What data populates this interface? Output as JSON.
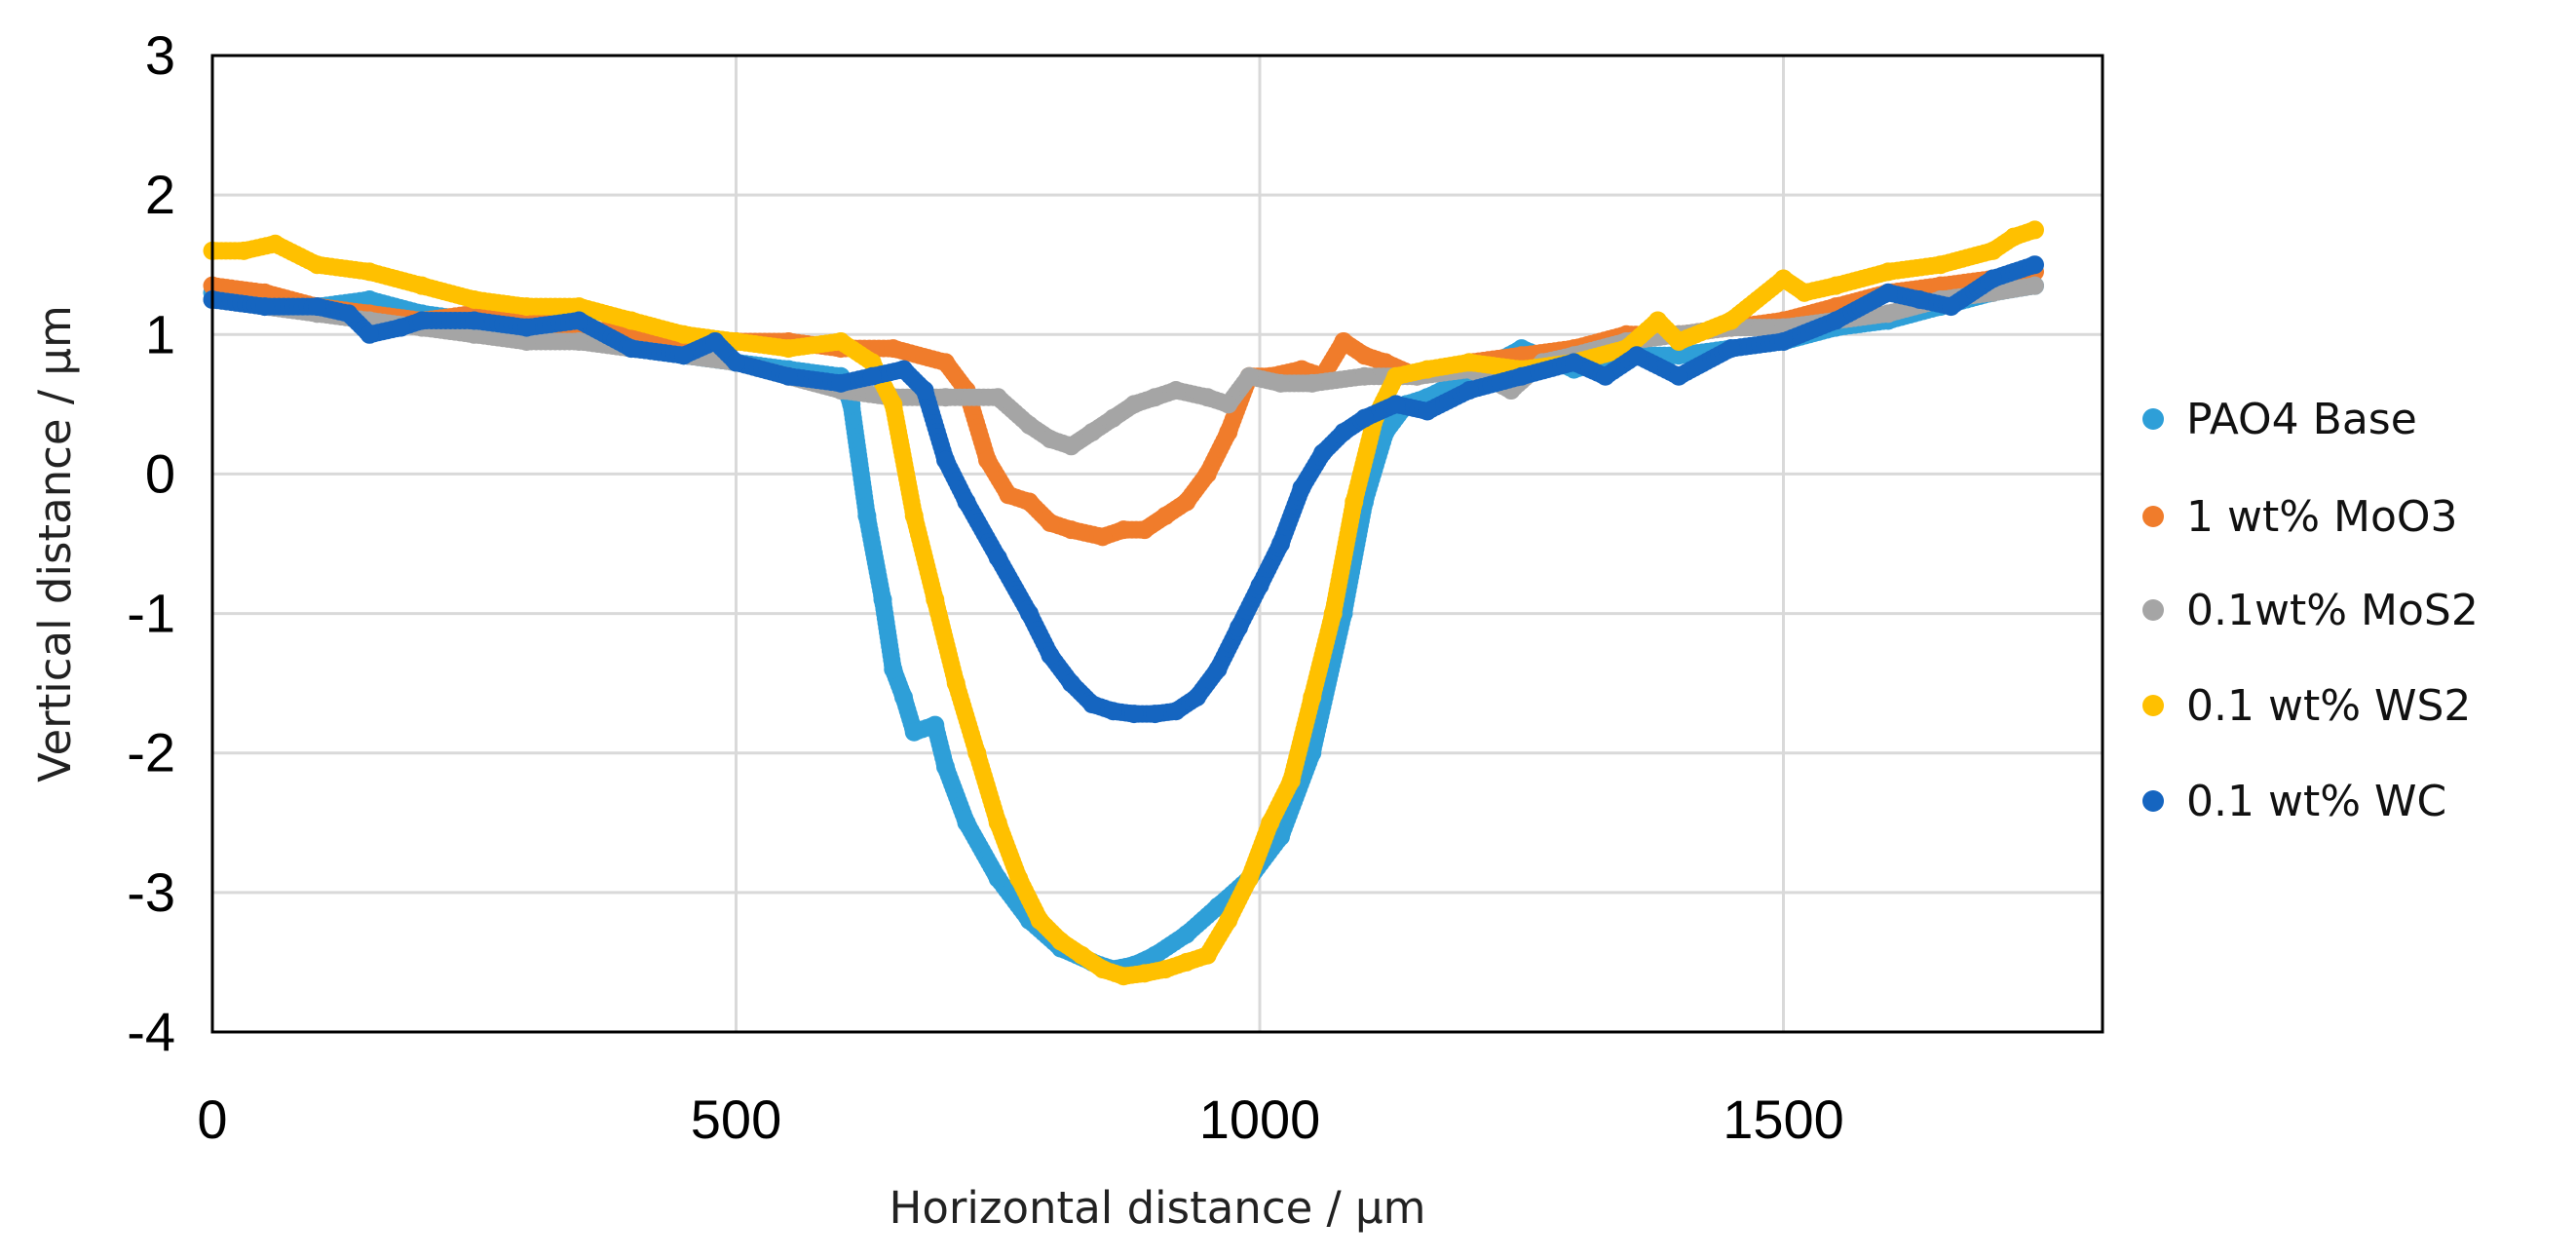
{
  "chart_data": {
    "type": "scatter",
    "title": "",
    "xlabel": "Horizontal distance / µm",
    "ylabel": "Vertical distance / µm",
    "xlim": [
      0,
      1800
    ],
    "ylim": [
      -4,
      3
    ],
    "xticks": [
      0,
      500,
      1000,
      1500
    ],
    "xtick_labels": [
      "0",
      "500",
      "1000",
      "1500"
    ],
    "yticks": [
      3,
      2,
      1,
      0,
      -1,
      -2,
      -3,
      -4
    ],
    "ytick_labels": [
      "3",
      "2",
      "1",
      "0",
      "-1",
      "-2",
      "-3",
      "-4"
    ],
    "grid": true,
    "legend_position": "right",
    "series": [
      {
        "name": "PAO4 Base",
        "color": "#2E9FD8",
        "points": [
          [
            0,
            1.3
          ],
          [
            50,
            1.25
          ],
          [
            100,
            1.2
          ],
          [
            150,
            1.25
          ],
          [
            200,
            1.15
          ],
          [
            250,
            1.1
          ],
          [
            300,
            1.05
          ],
          [
            350,
            1.0
          ],
          [
            400,
            0.9
          ],
          [
            450,
            0.85
          ],
          [
            500,
            0.8
          ],
          [
            550,
            0.75
          ],
          [
            600,
            0.7
          ],
          [
            610,
            0.5
          ],
          [
            625,
            -0.3
          ],
          [
            640,
            -0.9
          ],
          [
            650,
            -1.4
          ],
          [
            660,
            -1.6
          ],
          [
            670,
            -1.85
          ],
          [
            690,
            -1.8
          ],
          [
            700,
            -2.1
          ],
          [
            720,
            -2.5
          ],
          [
            750,
            -2.9
          ],
          [
            780,
            -3.2
          ],
          [
            810,
            -3.4
          ],
          [
            840,
            -3.5
          ],
          [
            860,
            -3.55
          ],
          [
            880,
            -3.52
          ],
          [
            900,
            -3.45
          ],
          [
            930,
            -3.3
          ],
          [
            960,
            -3.1
          ],
          [
            990,
            -2.9
          ],
          [
            1020,
            -2.6
          ],
          [
            1050,
            -2.0
          ],
          [
            1080,
            -1.0
          ],
          [
            1100,
            -0.2
          ],
          [
            1120,
            0.3
          ],
          [
            1140,
            0.5
          ],
          [
            1160,
            0.55
          ],
          [
            1200,
            0.7
          ],
          [
            1250,
            0.9
          ],
          [
            1300,
            0.75
          ],
          [
            1350,
            0.85
          ],
          [
            1400,
            0.85
          ],
          [
            1450,
            0.9
          ],
          [
            1500,
            0.95
          ],
          [
            1550,
            1.05
          ],
          [
            1600,
            1.1
          ],
          [
            1650,
            1.2
          ],
          [
            1700,
            1.3
          ],
          [
            1740,
            1.35
          ]
        ]
      },
      {
        "name": "1 wt% MoO3",
        "color": "#F07C2B",
        "points": [
          [
            0,
            1.35
          ],
          [
            50,
            1.3
          ],
          [
            100,
            1.2
          ],
          [
            150,
            1.15
          ],
          [
            200,
            1.1
          ],
          [
            250,
            1.15
          ],
          [
            300,
            1.1
          ],
          [
            350,
            1.05
          ],
          [
            400,
            1.0
          ],
          [
            450,
            0.95
          ],
          [
            500,
            0.95
          ],
          [
            550,
            0.95
          ],
          [
            600,
            0.9
          ],
          [
            650,
            0.9
          ],
          [
            700,
            0.8
          ],
          [
            720,
            0.6
          ],
          [
            740,
            0.1
          ],
          [
            760,
            -0.15
          ],
          [
            780,
            -0.2
          ],
          [
            800,
            -0.35
          ],
          [
            820,
            -0.4
          ],
          [
            850,
            -0.45
          ],
          [
            870,
            -0.4
          ],
          [
            890,
            -0.4
          ],
          [
            910,
            -0.3
          ],
          [
            930,
            -0.2
          ],
          [
            950,
            0.0
          ],
          [
            970,
            0.3
          ],
          [
            990,
            0.7
          ],
          [
            1010,
            0.7
          ],
          [
            1040,
            0.75
          ],
          [
            1060,
            0.7
          ],
          [
            1080,
            0.95
          ],
          [
            1100,
            0.85
          ],
          [
            1120,
            0.8
          ],
          [
            1150,
            0.7
          ],
          [
            1200,
            0.8
          ],
          [
            1250,
            0.85
          ],
          [
            1300,
            0.9
          ],
          [
            1350,
            1.0
          ],
          [
            1400,
            1.0
          ],
          [
            1450,
            1.05
          ],
          [
            1500,
            1.1
          ],
          [
            1550,
            1.2
          ],
          [
            1600,
            1.3
          ],
          [
            1650,
            1.35
          ],
          [
            1700,
            1.4
          ],
          [
            1740,
            1.45
          ]
        ]
      },
      {
        "name": "0.1wt% MoS2",
        "color": "#A5A5A5",
        "points": [
          [
            0,
            1.25
          ],
          [
            50,
            1.2
          ],
          [
            100,
            1.15
          ],
          [
            150,
            1.1
          ],
          [
            200,
            1.05
          ],
          [
            250,
            1.0
          ],
          [
            300,
            0.95
          ],
          [
            350,
            0.95
          ],
          [
            400,
            0.9
          ],
          [
            450,
            0.85
          ],
          [
            500,
            0.8
          ],
          [
            550,
            0.7
          ],
          [
            600,
            0.6
          ],
          [
            650,
            0.55
          ],
          [
            700,
            0.55
          ],
          [
            750,
            0.55
          ],
          [
            780,
            0.35
          ],
          [
            800,
            0.25
          ],
          [
            820,
            0.2
          ],
          [
            840,
            0.3
          ],
          [
            860,
            0.4
          ],
          [
            880,
            0.5
          ],
          [
            900,
            0.55
          ],
          [
            920,
            0.6
          ],
          [
            950,
            0.55
          ],
          [
            970,
            0.5
          ],
          [
            990,
            0.7
          ],
          [
            1020,
            0.65
          ],
          [
            1050,
            0.65
          ],
          [
            1100,
            0.7
          ],
          [
            1150,
            0.7
          ],
          [
            1200,
            0.75
          ],
          [
            1240,
            0.6
          ],
          [
            1270,
            0.8
          ],
          [
            1300,
            0.85
          ],
          [
            1350,
            0.95
          ],
          [
            1400,
            1.0
          ],
          [
            1450,
            1.05
          ],
          [
            1500,
            1.05
          ],
          [
            1550,
            1.1
          ],
          [
            1600,
            1.15
          ],
          [
            1650,
            1.25
          ],
          [
            1700,
            1.3
          ],
          [
            1740,
            1.35
          ]
        ]
      },
      {
        "name": "0.1 wt% WS2",
        "color": "#FFC000",
        "points": [
          [
            0,
            1.6
          ],
          [
            30,
            1.6
          ],
          [
            60,
            1.65
          ],
          [
            100,
            1.5
          ],
          [
            150,
            1.45
          ],
          [
            200,
            1.35
          ],
          [
            250,
            1.25
          ],
          [
            300,
            1.2
          ],
          [
            350,
            1.2
          ],
          [
            400,
            1.1
          ],
          [
            450,
            1.0
          ],
          [
            500,
            0.95
          ],
          [
            550,
            0.9
          ],
          [
            600,
            0.95
          ],
          [
            630,
            0.8
          ],
          [
            650,
            0.5
          ],
          [
            670,
            -0.3
          ],
          [
            690,
            -0.9
          ],
          [
            710,
            -1.5
          ],
          [
            730,
            -2.0
          ],
          [
            750,
            -2.5
          ],
          [
            770,
            -2.9
          ],
          [
            790,
            -3.2
          ],
          [
            810,
            -3.35
          ],
          [
            830,
            -3.45
          ],
          [
            850,
            -3.55
          ],
          [
            870,
            -3.6
          ],
          [
            890,
            -3.58
          ],
          [
            910,
            -3.55
          ],
          [
            930,
            -3.5
          ],
          [
            950,
            -3.45
          ],
          [
            970,
            -3.2
          ],
          [
            990,
            -2.9
          ],
          [
            1010,
            -2.5
          ],
          [
            1030,
            -2.2
          ],
          [
            1050,
            -1.6
          ],
          [
            1070,
            -1.0
          ],
          [
            1090,
            -0.2
          ],
          [
            1110,
            0.4
          ],
          [
            1130,
            0.7
          ],
          [
            1160,
            0.75
          ],
          [
            1200,
            0.8
          ],
          [
            1250,
            0.75
          ],
          [
            1300,
            0.8
          ],
          [
            1350,
            0.9
          ],
          [
            1380,
            1.1
          ],
          [
            1400,
            0.95
          ],
          [
            1450,
            1.1
          ],
          [
            1500,
            1.4
          ],
          [
            1520,
            1.3
          ],
          [
            1550,
            1.35
          ],
          [
            1600,
            1.45
          ],
          [
            1650,
            1.5
          ],
          [
            1700,
            1.6
          ],
          [
            1720,
            1.7
          ],
          [
            1740,
            1.75
          ]
        ]
      },
      {
        "name": "0.1 wt% WC",
        "color": "#1565C0",
        "points": [
          [
            0,
            1.25
          ],
          [
            50,
            1.2
          ],
          [
            100,
            1.2
          ],
          [
            130,
            1.15
          ],
          [
            150,
            1.0
          ],
          [
            180,
            1.05
          ],
          [
            200,
            1.1
          ],
          [
            250,
            1.1
          ],
          [
            300,
            1.05
          ],
          [
            350,
            1.1
          ],
          [
            400,
            0.9
          ],
          [
            450,
            0.85
          ],
          [
            480,
            0.95
          ],
          [
            500,
            0.8
          ],
          [
            550,
            0.7
          ],
          [
            600,
            0.65
          ],
          [
            630,
            0.7
          ],
          [
            660,
            0.75
          ],
          [
            680,
            0.6
          ],
          [
            700,
            0.1
          ],
          [
            720,
            -0.2
          ],
          [
            750,
            -0.6
          ],
          [
            780,
            -1.0
          ],
          [
            800,
            -1.3
          ],
          [
            820,
            -1.5
          ],
          [
            840,
            -1.65
          ],
          [
            860,
            -1.7
          ],
          [
            880,
            -1.72
          ],
          [
            900,
            -1.72
          ],
          [
            920,
            -1.7
          ],
          [
            940,
            -1.6
          ],
          [
            960,
            -1.4
          ],
          [
            980,
            -1.1
          ],
          [
            1000,
            -0.8
          ],
          [
            1020,
            -0.5
          ],
          [
            1040,
            -0.1
          ],
          [
            1060,
            0.15
          ],
          [
            1080,
            0.3
          ],
          [
            1100,
            0.4
          ],
          [
            1130,
            0.5
          ],
          [
            1160,
            0.45
          ],
          [
            1200,
            0.6
          ],
          [
            1250,
            0.7
          ],
          [
            1300,
            0.8
          ],
          [
            1330,
            0.7
          ],
          [
            1360,
            0.85
          ],
          [
            1400,
            0.7
          ],
          [
            1450,
            0.9
          ],
          [
            1500,
            0.95
          ],
          [
            1550,
            1.1
          ],
          [
            1600,
            1.3
          ],
          [
            1630,
            1.25
          ],
          [
            1660,
            1.2
          ],
          [
            1700,
            1.4
          ],
          [
            1740,
            1.5
          ]
        ]
      }
    ]
  }
}
